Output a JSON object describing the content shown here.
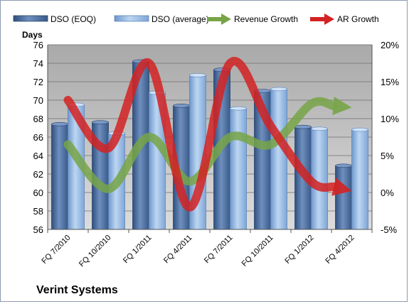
{
  "chart_data": {
    "type": "bar",
    "title": "Verint Systems",
    "ylabel": "Days",
    "categories": [
      "FQ 7/2010",
      "FQ 10/2010",
      "FQ 1/2011",
      "FQ 4/2011",
      "FQ 7/2011",
      "FQ 10/2011",
      "FQ 1/2012",
      "FQ 4/2012"
    ],
    "y_left_ticks": [
      "56",
      "58",
      "60",
      "62",
      "64",
      "66",
      "68",
      "70",
      "72",
      "74",
      "76"
    ],
    "y_right_ticks": [
      "-5%",
      "0%",
      "5%",
      "10%",
      "15%",
      "20%"
    ],
    "ylim": [
      56,
      76
    ],
    "y2lim": [
      -5,
      20
    ],
    "legend_position": "top",
    "grid": true,
    "bar_series": [
      {
        "name": "DSO (EOQ)",
        "color": "#4f6f9f",
        "values": [
          67.4,
          67.6,
          74.2,
          69.4,
          73.3,
          71.0,
          67.1,
          62.9
        ]
      },
      {
        "name": "DSO (average)",
        "color": "#8fb4e0",
        "values": [
          69.5,
          66.4,
          70.8,
          72.7,
          69.1,
          71.2,
          66.9,
          66.8
        ]
      }
    ],
    "line_series": [
      {
        "name": "Revenue Growth",
        "color": "#77a447",
        "axis": "right",
        "values": [
          6.5,
          0.5,
          7.5,
          1.5,
          7.5,
          6.5,
          12,
          11.5
        ]
      },
      {
        "name": "AR Growth",
        "color": "#d42222",
        "axis": "right",
        "values": [
          12.5,
          6,
          17.5,
          -2,
          17.5,
          9,
          1.5,
          0.2
        ]
      }
    ]
  }
}
